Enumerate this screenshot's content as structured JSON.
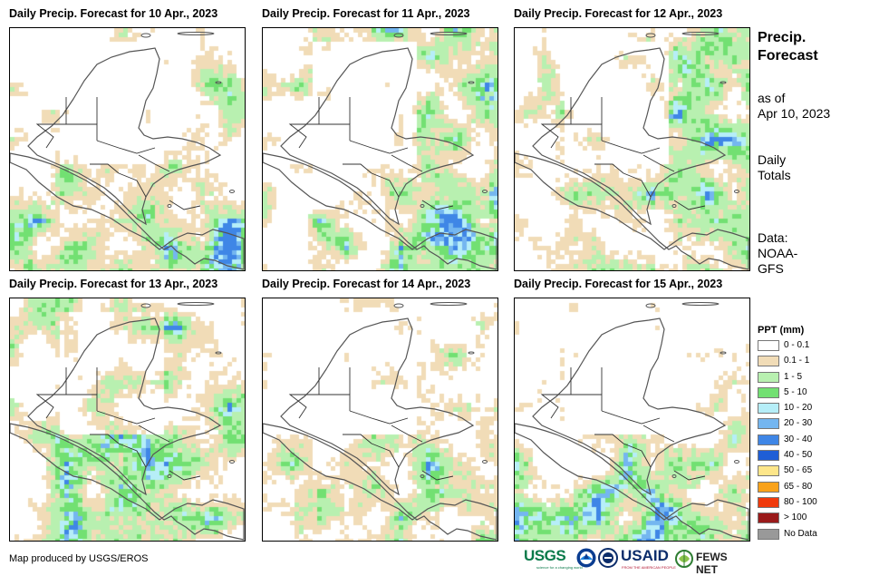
{
  "panels": [
    {
      "title": "Daily Precip. Forecast for 10 Apr., 2023",
      "seed": 11,
      "wet": 0.55,
      "bias": "south"
    },
    {
      "title": "Daily Precip. Forecast for 11 Apr., 2023",
      "seed": 23,
      "wet": 0.6,
      "bias": "east"
    },
    {
      "title": "Daily Precip. Forecast for 12 Apr., 2023",
      "seed": 37,
      "wet": 0.62,
      "bias": "east"
    },
    {
      "title": "Daily Precip. Forecast for 13 Apr., 2023",
      "seed": 41,
      "wet": 0.6,
      "bias": "center"
    },
    {
      "title": "Daily Precip. Forecast for 14 Apr., 2023",
      "seed": 53,
      "wet": 0.52,
      "bias": "center"
    },
    {
      "title": "Daily Precip. Forecast for 15 Apr., 2023",
      "seed": 67,
      "wet": 0.5,
      "bias": "south"
    }
  ],
  "sidebar": {
    "title_line1": "Precip.",
    "title_line2": "Forecast",
    "asof_line1": "as of",
    "asof_line2": "Apr 10, 2023",
    "daily_line1": "Daily",
    "daily_line2": "Totals",
    "data_line1": "Data:",
    "data_line2": "NOAA-",
    "data_line3": "GFS"
  },
  "legend": {
    "title": "PPT (mm)",
    "items": [
      {
        "label": "0 - 0.1",
        "color": "#ffffff"
      },
      {
        "label": "0.1 - 1",
        "color": "#f1dcb7"
      },
      {
        "label": "1 - 5",
        "color": "#b8f0b0"
      },
      {
        "label": "5 - 10",
        "color": "#72e072"
      },
      {
        "label": "10 - 20",
        "color": "#b6eef8"
      },
      {
        "label": "20 - 30",
        "color": "#74b6f0"
      },
      {
        "label": "30 - 40",
        "color": "#3f86e6"
      },
      {
        "label": "40 - 50",
        "color": "#1f5ed6"
      },
      {
        "label": "50 - 65",
        "color": "#fde68a"
      },
      {
        "label": "65 - 80",
        "color": "#f9a21a"
      },
      {
        "label": "80 - 100",
        "color": "#f03a0c"
      },
      {
        "label": "> 100",
        "color": "#9a1a1a"
      },
      {
        "label": "No Data",
        "color": "#999999"
      }
    ]
  },
  "credit": "Map produced by USGS/EROS",
  "logos": {
    "usgs": "USGS",
    "usgs_tagline": "science for a changing world",
    "usaid": "USAID",
    "usaid_tagline": "FROM THE AMERICAN PEOPLE",
    "fews": "FEWS NET"
  },
  "colors": {
    "border": "#7a7a7a",
    "coast": "#555555"
  }
}
